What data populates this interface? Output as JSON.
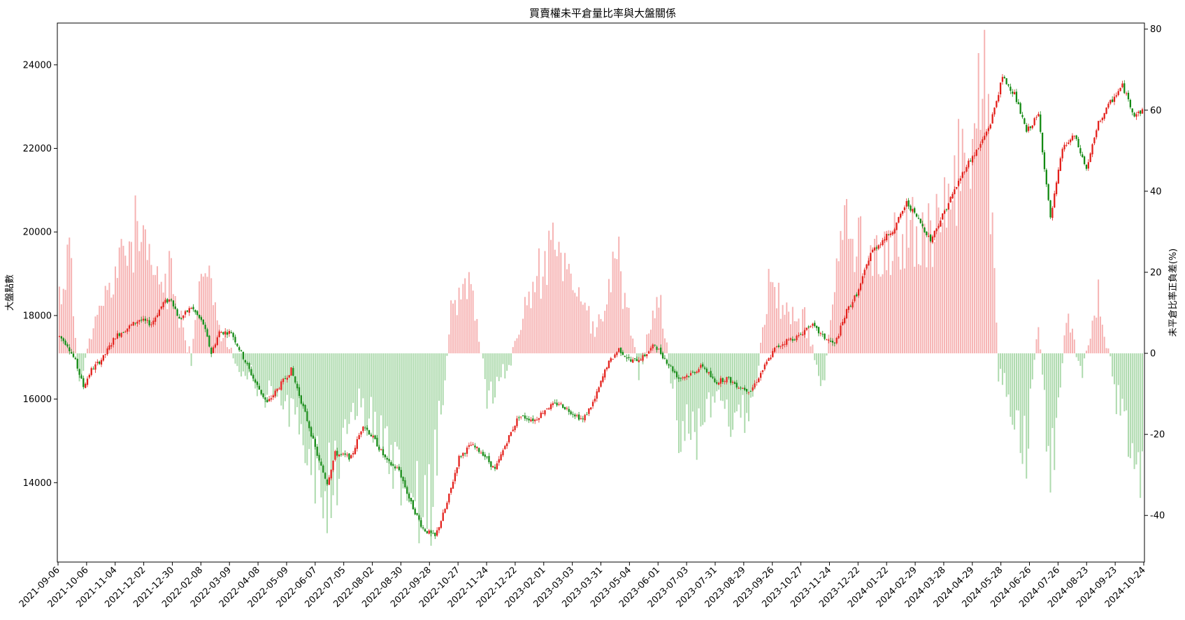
{
  "chart_data": {
    "type": "bar",
    "title": "買賣權未平倉量比率與大盤關係",
    "xlabel": "",
    "ylabel_left": "大盤點數",
    "ylabel_right": "未平倉比率正負差(%)",
    "x_tick_labels": [
      "2021-09-06",
      "2021-10-06",
      "2021-11-04",
      "2021-12-02",
      "2021-12-30",
      "2022-02-08",
      "2022-03-09",
      "2022-04-08",
      "2022-05-09",
      "2022-06-07",
      "2022-07-05",
      "2022-08-02",
      "2022-08-30",
      "2022-09-28",
      "2022-10-27",
      "2022-11-24",
      "2022-12-22",
      "2023-02-01",
      "2023-03-03",
      "2023-03-31",
      "2023-05-04",
      "2023-06-01",
      "2023-07-03",
      "2023-07-31",
      "2023-08-29",
      "2023-09-26",
      "2023-10-27",
      "2023-11-24",
      "2023-12-22",
      "2024-01-22",
      "2024-02-29",
      "2024-03-28",
      "2024-04-29",
      "2024-05-28",
      "2024-06-26",
      "2024-07-26",
      "2024-08-23",
      "2024-09-23",
      "2024-10-24"
    ],
    "left_axis": {
      "ticks": [
        14000,
        16000,
        18000,
        20000,
        22000,
        24000
      ],
      "ylim": [
        12100,
        25000
      ]
    },
    "right_axis": {
      "ticks": [
        -40,
        -20,
        0,
        20,
        40,
        60,
        80
      ],
      "ylim": [
        -51.5,
        81.5
      ]
    },
    "grid": false,
    "colors": {
      "positive_bar": "#f4a6a6",
      "negative_bar": "#9fd49f",
      "candle_up": "#e3201b",
      "candle_down": "#138a13"
    },
    "series": [
      {
        "type": "candlestick",
        "axis": "left",
        "anchor_values": [
          [
            0,
            17500
          ],
          [
            4,
            17300
          ],
          [
            8,
            16900
          ],
          [
            12,
            16300
          ],
          [
            16,
            16700
          ],
          [
            22,
            17000
          ],
          [
            28,
            17500
          ],
          [
            34,
            17700
          ],
          [
            40,
            17900
          ],
          [
            46,
            17800
          ],
          [
            52,
            18300
          ],
          [
            56,
            18400
          ],
          [
            60,
            17900
          ],
          [
            66,
            18200
          ],
          [
            72,
            17800
          ],
          [
            76,
            17100
          ],
          [
            80,
            17600
          ],
          [
            86,
            17600
          ],
          [
            92,
            17000
          ],
          [
            98,
            16400
          ],
          [
            104,
            15900
          ],
          [
            110,
            16300
          ],
          [
            116,
            16700
          ],
          [
            124,
            15500
          ],
          [
            130,
            14500
          ],
          [
            134,
            14000
          ],
          [
            138,
            14700
          ],
          [
            146,
            14600
          ],
          [
            152,
            15400
          ],
          [
            158,
            15000
          ],
          [
            164,
            14500
          ],
          [
            170,
            14300
          ],
          [
            176,
            13500
          ],
          [
            182,
            12900
          ],
          [
            188,
            12700
          ],
          [
            194,
            13500
          ],
          [
            200,
            14600
          ],
          [
            206,
            14900
          ],
          [
            212,
            14700
          ],
          [
            218,
            14300
          ],
          [
            224,
            15000
          ],
          [
            230,
            15600
          ],
          [
            238,
            15500
          ],
          [
            244,
            15800
          ],
          [
            250,
            15900
          ],
          [
            256,
            15700
          ],
          [
            262,
            15500
          ],
          [
            268,
            16000
          ],
          [
            274,
            16800
          ],
          [
            280,
            17200
          ],
          [
            286,
            16900
          ],
          [
            292,
            17000
          ],
          [
            298,
            17300
          ],
          [
            304,
            16900
          ],
          [
            310,
            16500
          ],
          [
            316,
            16600
          ],
          [
            322,
            16800
          ],
          [
            328,
            16400
          ],
          [
            334,
            16500
          ],
          [
            340,
            16300
          ],
          [
            346,
            16200
          ],
          [
            352,
            16700
          ],
          [
            358,
            17200
          ],
          [
            364,
            17400
          ],
          [
            370,
            17500
          ],
          [
            376,
            17800
          ],
          [
            382,
            17500
          ],
          [
            388,
            17300
          ],
          [
            394,
            18100
          ],
          [
            400,
            18600
          ],
          [
            406,
            19500
          ],
          [
            412,
            19800
          ],
          [
            418,
            20100
          ],
          [
            424,
            20700
          ],
          [
            430,
            20300
          ],
          [
            436,
            19800
          ],
          [
            442,
            20400
          ],
          [
            448,
            21000
          ],
          [
            454,
            21600
          ],
          [
            460,
            22000
          ],
          [
            466,
            22600
          ],
          [
            472,
            23700
          ],
          [
            478,
            23300
          ],
          [
            484,
            22400
          ],
          [
            490,
            22800
          ],
          [
            496,
            20300
          ],
          [
            502,
            22000
          ],
          [
            508,
            22300
          ],
          [
            514,
            21500
          ],
          [
            520,
            22600
          ],
          [
            526,
            23100
          ],
          [
            532,
            23500
          ],
          [
            538,
            22800
          ],
          [
            542,
            22900
          ]
        ],
        "count": 543,
        "seed": 7
      },
      {
        "type": "bar",
        "axis": "right",
        "anchor_values": [
          [
            0,
            15
          ],
          [
            5,
            28
          ],
          [
            10,
            -12
          ],
          [
            15,
            5
          ],
          [
            20,
            10
          ],
          [
            30,
            25
          ],
          [
            38,
            33
          ],
          [
            48,
            20
          ],
          [
            56,
            20
          ],
          [
            66,
            -2
          ],
          [
            72,
            25
          ],
          [
            82,
            5
          ],
          [
            92,
            -5
          ],
          [
            100,
            -10
          ],
          [
            110,
            -12
          ],
          [
            120,
            -18
          ],
          [
            126,
            -30
          ],
          [
            134,
            -40
          ],
          [
            140,
            -30
          ],
          [
            150,
            -15
          ],
          [
            160,
            -20
          ],
          [
            172,
            -35
          ],
          [
            186,
            -42
          ],
          [
            196,
            10
          ],
          [
            206,
            20
          ],
          [
            214,
            -12
          ],
          [
            224,
            -5
          ],
          [
            234,
            15
          ],
          [
            246,
            28
          ],
          [
            258,
            20
          ],
          [
            268,
            5
          ],
          [
            280,
            25
          ],
          [
            290,
            -5
          ],
          [
            300,
            15
          ],
          [
            310,
            -20
          ],
          [
            318,
            -25
          ],
          [
            328,
            -10
          ],
          [
            336,
            -20
          ],
          [
            346,
            -15
          ],
          [
            356,
            20
          ],
          [
            366,
            10
          ],
          [
            374,
            8
          ],
          [
            382,
            -10
          ],
          [
            392,
            35
          ],
          [
            402,
            30
          ],
          [
            412,
            25
          ],
          [
            420,
            30
          ],
          [
            428,
            35
          ],
          [
            436,
            30
          ],
          [
            444,
            40
          ],
          [
            452,
            55
          ],
          [
            458,
            65
          ],
          [
            464,
            70
          ],
          [
            470,
            -5
          ],
          [
            478,
            -15
          ],
          [
            484,
            -25
          ],
          [
            490,
            10
          ],
          [
            496,
            -35
          ],
          [
            504,
            10
          ],
          [
            512,
            -5
          ],
          [
            520,
            15
          ],
          [
            528,
            -10
          ],
          [
            534,
            -20
          ],
          [
            542,
            -30
          ]
        ],
        "count": 543,
        "seed": 11
      }
    ]
  }
}
